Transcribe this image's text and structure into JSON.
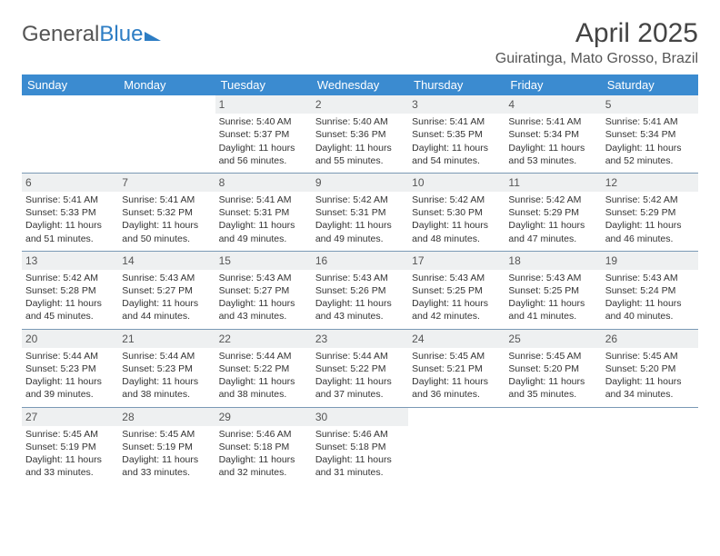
{
  "logo": {
    "part1": "General",
    "part2": "Blue"
  },
  "title": "April 2025",
  "location": "Guiratinga, Mato Grosso, Brazil",
  "colors": {
    "header_bg": "#3b8bd0",
    "daynum_bg": "#eef0f1",
    "week_border": "#7a99b5",
    "text": "#333333",
    "logo_blue": "#2d7dc4"
  },
  "weekdays": [
    "Sunday",
    "Monday",
    "Tuesday",
    "Wednesday",
    "Thursday",
    "Friday",
    "Saturday"
  ],
  "weeks": [
    [
      {
        "empty": true
      },
      {
        "empty": true
      },
      {
        "day": "1",
        "sunrise": "Sunrise: 5:40 AM",
        "sunset": "Sunset: 5:37 PM",
        "d1": "Daylight: 11 hours",
        "d2": "and 56 minutes."
      },
      {
        "day": "2",
        "sunrise": "Sunrise: 5:40 AM",
        "sunset": "Sunset: 5:36 PM",
        "d1": "Daylight: 11 hours",
        "d2": "and 55 minutes."
      },
      {
        "day": "3",
        "sunrise": "Sunrise: 5:41 AM",
        "sunset": "Sunset: 5:35 PM",
        "d1": "Daylight: 11 hours",
        "d2": "and 54 minutes."
      },
      {
        "day": "4",
        "sunrise": "Sunrise: 5:41 AM",
        "sunset": "Sunset: 5:34 PM",
        "d1": "Daylight: 11 hours",
        "d2": "and 53 minutes."
      },
      {
        "day": "5",
        "sunrise": "Sunrise: 5:41 AM",
        "sunset": "Sunset: 5:34 PM",
        "d1": "Daylight: 11 hours",
        "d2": "and 52 minutes."
      }
    ],
    [
      {
        "day": "6",
        "sunrise": "Sunrise: 5:41 AM",
        "sunset": "Sunset: 5:33 PM",
        "d1": "Daylight: 11 hours",
        "d2": "and 51 minutes."
      },
      {
        "day": "7",
        "sunrise": "Sunrise: 5:41 AM",
        "sunset": "Sunset: 5:32 PM",
        "d1": "Daylight: 11 hours",
        "d2": "and 50 minutes."
      },
      {
        "day": "8",
        "sunrise": "Sunrise: 5:41 AM",
        "sunset": "Sunset: 5:31 PM",
        "d1": "Daylight: 11 hours",
        "d2": "and 49 minutes."
      },
      {
        "day": "9",
        "sunrise": "Sunrise: 5:42 AM",
        "sunset": "Sunset: 5:31 PM",
        "d1": "Daylight: 11 hours",
        "d2": "and 49 minutes."
      },
      {
        "day": "10",
        "sunrise": "Sunrise: 5:42 AM",
        "sunset": "Sunset: 5:30 PM",
        "d1": "Daylight: 11 hours",
        "d2": "and 48 minutes."
      },
      {
        "day": "11",
        "sunrise": "Sunrise: 5:42 AM",
        "sunset": "Sunset: 5:29 PM",
        "d1": "Daylight: 11 hours",
        "d2": "and 47 minutes."
      },
      {
        "day": "12",
        "sunrise": "Sunrise: 5:42 AM",
        "sunset": "Sunset: 5:29 PM",
        "d1": "Daylight: 11 hours",
        "d2": "and 46 minutes."
      }
    ],
    [
      {
        "day": "13",
        "sunrise": "Sunrise: 5:42 AM",
        "sunset": "Sunset: 5:28 PM",
        "d1": "Daylight: 11 hours",
        "d2": "and 45 minutes."
      },
      {
        "day": "14",
        "sunrise": "Sunrise: 5:43 AM",
        "sunset": "Sunset: 5:27 PM",
        "d1": "Daylight: 11 hours",
        "d2": "and 44 minutes."
      },
      {
        "day": "15",
        "sunrise": "Sunrise: 5:43 AM",
        "sunset": "Sunset: 5:27 PM",
        "d1": "Daylight: 11 hours",
        "d2": "and 43 minutes."
      },
      {
        "day": "16",
        "sunrise": "Sunrise: 5:43 AM",
        "sunset": "Sunset: 5:26 PM",
        "d1": "Daylight: 11 hours",
        "d2": "and 43 minutes."
      },
      {
        "day": "17",
        "sunrise": "Sunrise: 5:43 AM",
        "sunset": "Sunset: 5:25 PM",
        "d1": "Daylight: 11 hours",
        "d2": "and 42 minutes."
      },
      {
        "day": "18",
        "sunrise": "Sunrise: 5:43 AM",
        "sunset": "Sunset: 5:25 PM",
        "d1": "Daylight: 11 hours",
        "d2": "and 41 minutes."
      },
      {
        "day": "19",
        "sunrise": "Sunrise: 5:43 AM",
        "sunset": "Sunset: 5:24 PM",
        "d1": "Daylight: 11 hours",
        "d2": "and 40 minutes."
      }
    ],
    [
      {
        "day": "20",
        "sunrise": "Sunrise: 5:44 AM",
        "sunset": "Sunset: 5:23 PM",
        "d1": "Daylight: 11 hours",
        "d2": "and 39 minutes."
      },
      {
        "day": "21",
        "sunrise": "Sunrise: 5:44 AM",
        "sunset": "Sunset: 5:23 PM",
        "d1": "Daylight: 11 hours",
        "d2": "and 38 minutes."
      },
      {
        "day": "22",
        "sunrise": "Sunrise: 5:44 AM",
        "sunset": "Sunset: 5:22 PM",
        "d1": "Daylight: 11 hours",
        "d2": "and 38 minutes."
      },
      {
        "day": "23",
        "sunrise": "Sunrise: 5:44 AM",
        "sunset": "Sunset: 5:22 PM",
        "d1": "Daylight: 11 hours",
        "d2": "and 37 minutes."
      },
      {
        "day": "24",
        "sunrise": "Sunrise: 5:45 AM",
        "sunset": "Sunset: 5:21 PM",
        "d1": "Daylight: 11 hours",
        "d2": "and 36 minutes."
      },
      {
        "day": "25",
        "sunrise": "Sunrise: 5:45 AM",
        "sunset": "Sunset: 5:20 PM",
        "d1": "Daylight: 11 hours",
        "d2": "and 35 minutes."
      },
      {
        "day": "26",
        "sunrise": "Sunrise: 5:45 AM",
        "sunset": "Sunset: 5:20 PM",
        "d1": "Daylight: 11 hours",
        "d2": "and 34 minutes."
      }
    ],
    [
      {
        "day": "27",
        "sunrise": "Sunrise: 5:45 AM",
        "sunset": "Sunset: 5:19 PM",
        "d1": "Daylight: 11 hours",
        "d2": "and 33 minutes."
      },
      {
        "day": "28",
        "sunrise": "Sunrise: 5:45 AM",
        "sunset": "Sunset: 5:19 PM",
        "d1": "Daylight: 11 hours",
        "d2": "and 33 minutes."
      },
      {
        "day": "29",
        "sunrise": "Sunrise: 5:46 AM",
        "sunset": "Sunset: 5:18 PM",
        "d1": "Daylight: 11 hours",
        "d2": "and 32 minutes."
      },
      {
        "day": "30",
        "sunrise": "Sunrise: 5:46 AM",
        "sunset": "Sunset: 5:18 PM",
        "d1": "Daylight: 11 hours",
        "d2": "and 31 minutes."
      },
      {
        "empty": true
      },
      {
        "empty": true
      },
      {
        "empty": true
      }
    ]
  ]
}
